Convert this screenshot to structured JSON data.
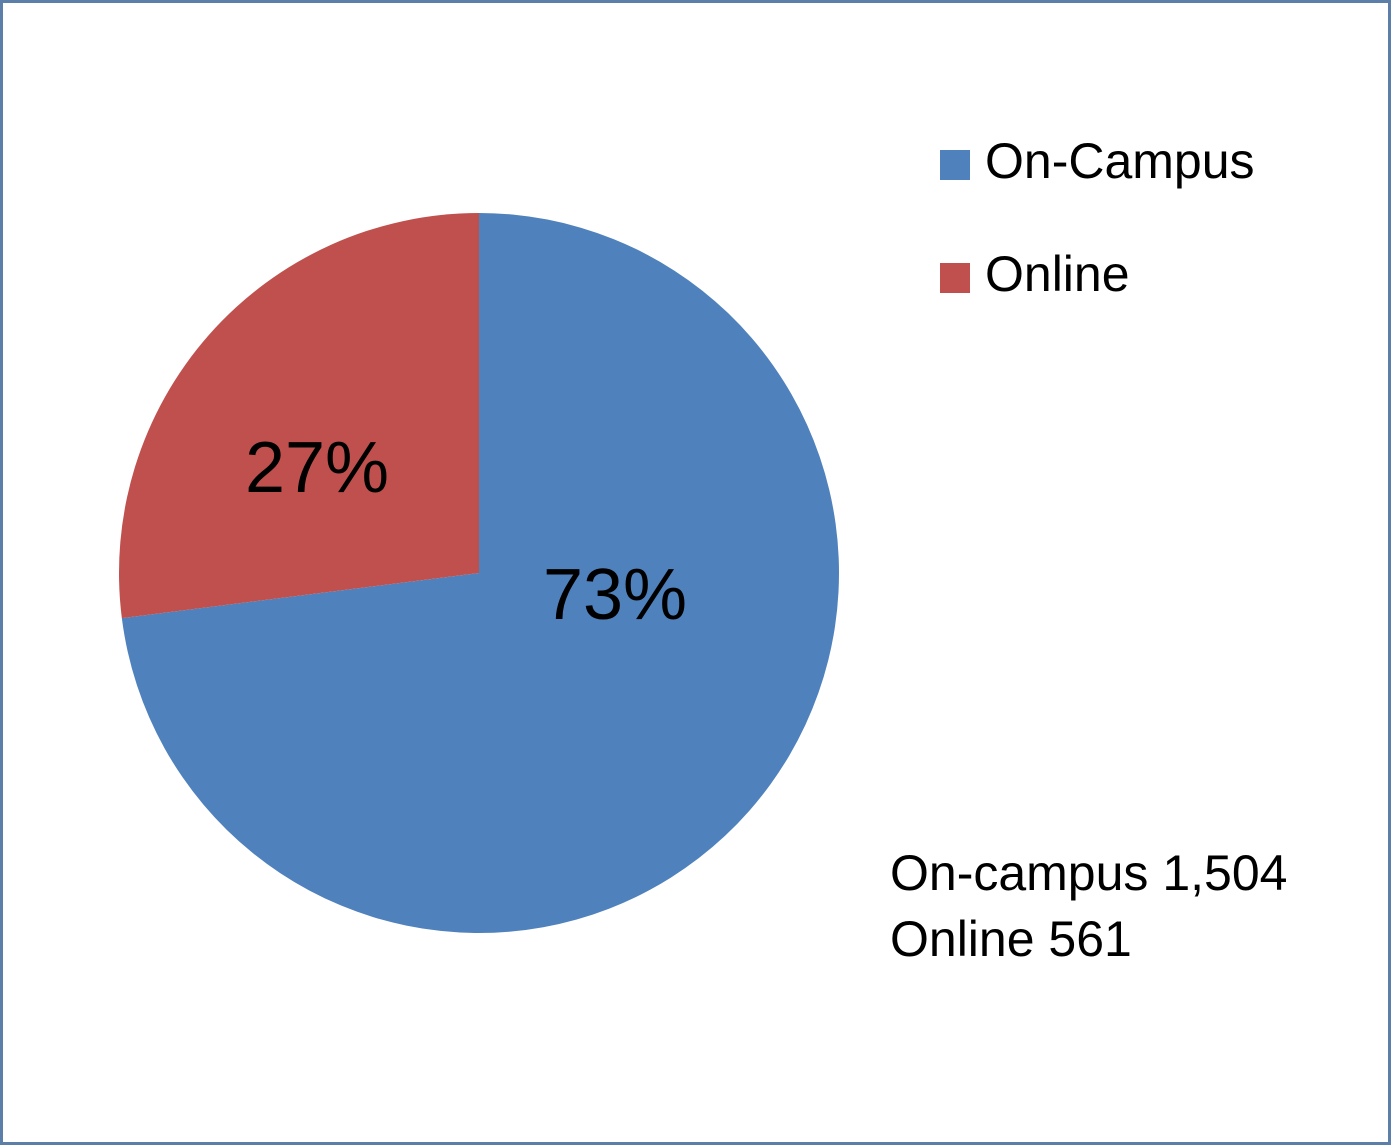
{
  "chart_data": {
    "type": "pie",
    "categories": [
      "On-Campus",
      "Online"
    ],
    "values": [
      73,
      27
    ],
    "value_labels": [
      "73%",
      "27%"
    ],
    "colors": [
      "#4f81bd",
      "#c0504d"
    ],
    "legend": "top-right",
    "annotations": [
      "On-campus 1,504",
      "Online 561"
    ]
  }
}
